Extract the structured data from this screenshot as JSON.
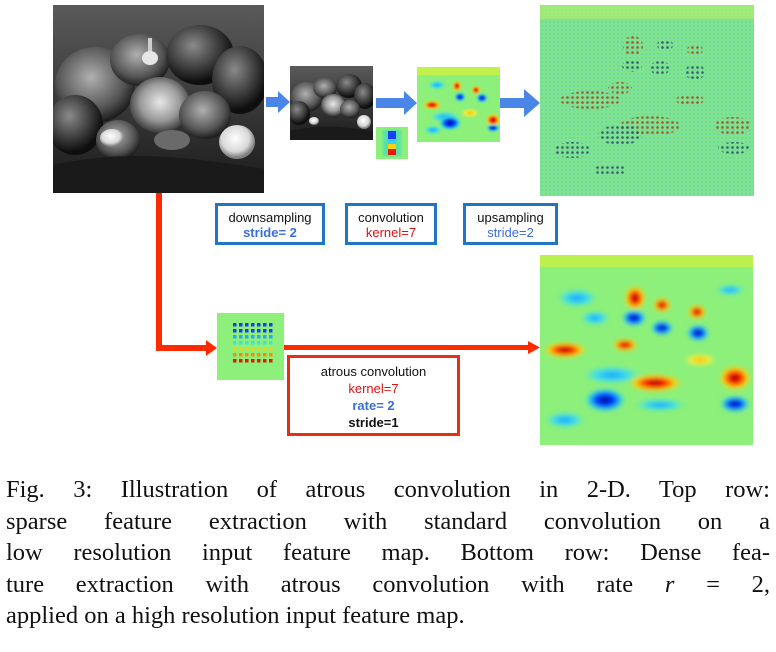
{
  "figure": {
    "top_row": {
      "downsampling_box": {
        "title": "downsampling",
        "param": "stride= 2"
      },
      "convolution_box": {
        "title": "convolution",
        "param": "kernel=7"
      },
      "upsampling_box": {
        "title": "upsampling",
        "param": "stride=2"
      }
    },
    "bottom_row": {
      "atrous_box": {
        "title": "atrous convolution",
        "kernel": "kernel=7",
        "rate": "rate= 2",
        "stride": "stride=1"
      }
    },
    "colors": {
      "blue_arrow": "#4a86e8",
      "red_arrow": "#ff2a00",
      "blue_border": "#1f77c4",
      "red_border": "#e53014"
    }
  },
  "caption": {
    "line1": "Fig. 3: Illustration of atrous convolution in 2-D. Top row:",
    "line2": "sparse feature extraction with standard convolution on a",
    "line3": "low resolution input feature map. Bottom row: Dense fea-",
    "line4a": "ture extraction with atrous convolution with rate ",
    "var": "r",
    "eq": " = 2,",
    "line5": "applied on a high resolution input feature map."
  }
}
